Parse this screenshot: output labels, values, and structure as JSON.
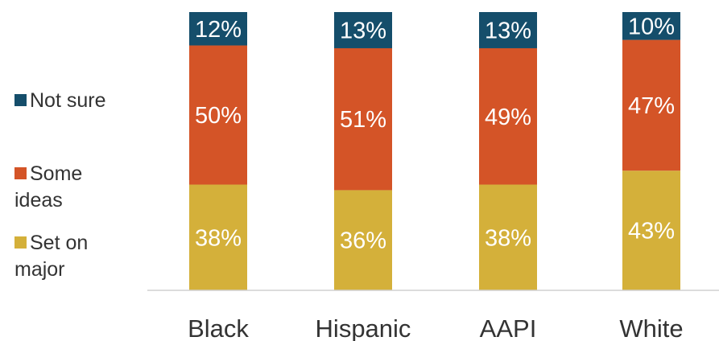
{
  "chart_data": {
    "type": "bar",
    "stacked": true,
    "orientation": "vertical",
    "categories": [
      "Black",
      "Hispanic",
      "AAPI",
      "White"
    ],
    "series": [
      {
        "name": "Set on major",
        "legend_lines": [
          "Set on",
          "major"
        ],
        "values": [
          38,
          36,
          38,
          43
        ],
        "labels": [
          "38%",
          "36%",
          "38%",
          "43%"
        ],
        "color": "#d4b03a",
        "label_color": "#ffffff"
      },
      {
        "name": "Some ideas",
        "legend_lines": [
          "Some",
          "ideas"
        ],
        "values": [
          50,
          51,
          49,
          47
        ],
        "labels": [
          "50%",
          "51%",
          "49%",
          "47%"
        ],
        "color": "#d45427",
        "label_color": "#ffffff"
      },
      {
        "name": "Not sure",
        "legend_lines": [
          "Not sure"
        ],
        "values": [
          12,
          13,
          13,
          10
        ],
        "labels": [
          "12%",
          "13%",
          "13%",
          "10%"
        ],
        "color": "#154e6b",
        "label_color": "#ffffff"
      }
    ],
    "legend_order": [
      "Not sure",
      "Some ideas",
      "Set on major"
    ],
    "legend_position": "left",
    "grid": false,
    "title": "",
    "xlabel": "",
    "ylabel": "",
    "ylim": [
      0,
      100
    ]
  }
}
